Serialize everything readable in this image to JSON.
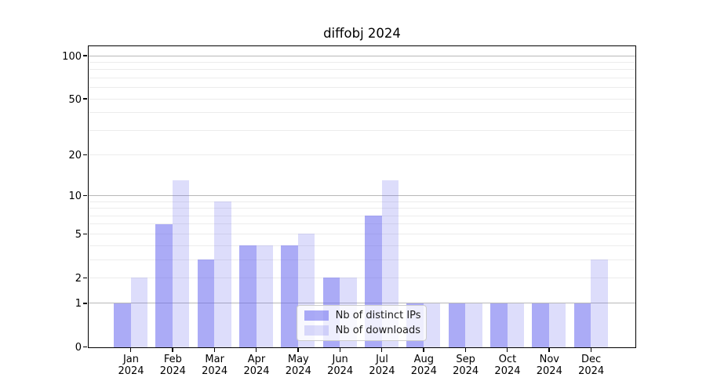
{
  "chart_data": {
    "type": "bar",
    "title": "diffobj 2024",
    "x_year": "2024",
    "categories": [
      "Jan",
      "Feb",
      "Mar",
      "Apr",
      "May",
      "Jun",
      "Jul",
      "Aug",
      "Sep",
      "Oct",
      "Nov",
      "Dec"
    ],
    "series": [
      {
        "name": "Nb of distinct IPs",
        "color": "#6666ee",
        "alpha": 0.55,
        "values": [
          1,
          6,
          3,
          4,
          4,
          2,
          7,
          1,
          1,
          1,
          1,
          1
        ]
      },
      {
        "name": "Nb of downloads",
        "color": "#6666ee",
        "alpha": 0.22,
        "values": [
          2,
          13,
          9,
          4,
          5,
          2,
          13,
          1,
          1,
          1,
          1,
          3
        ]
      }
    ],
    "yscale": "log1p",
    "ylim": [
      0,
      117
    ],
    "yticks": [
      0,
      1,
      2,
      5,
      10,
      20,
      50,
      100
    ],
    "major_gridlines": [
      1,
      10,
      100
    ],
    "minor_gridlines": [
      2,
      3,
      4,
      5,
      6,
      7,
      8,
      9,
      20,
      30,
      40,
      50,
      60,
      70,
      80,
      90
    ],
    "grid": true,
    "legend_position": "inside lower center"
  },
  "colors": {
    "bar_base_rgb": "102,102,238",
    "major_grid": "#b8b8b8",
    "minor_grid": "#ececec",
    "spine": "#000000",
    "background": "#ffffff",
    "legend_border": "#cccccc"
  }
}
